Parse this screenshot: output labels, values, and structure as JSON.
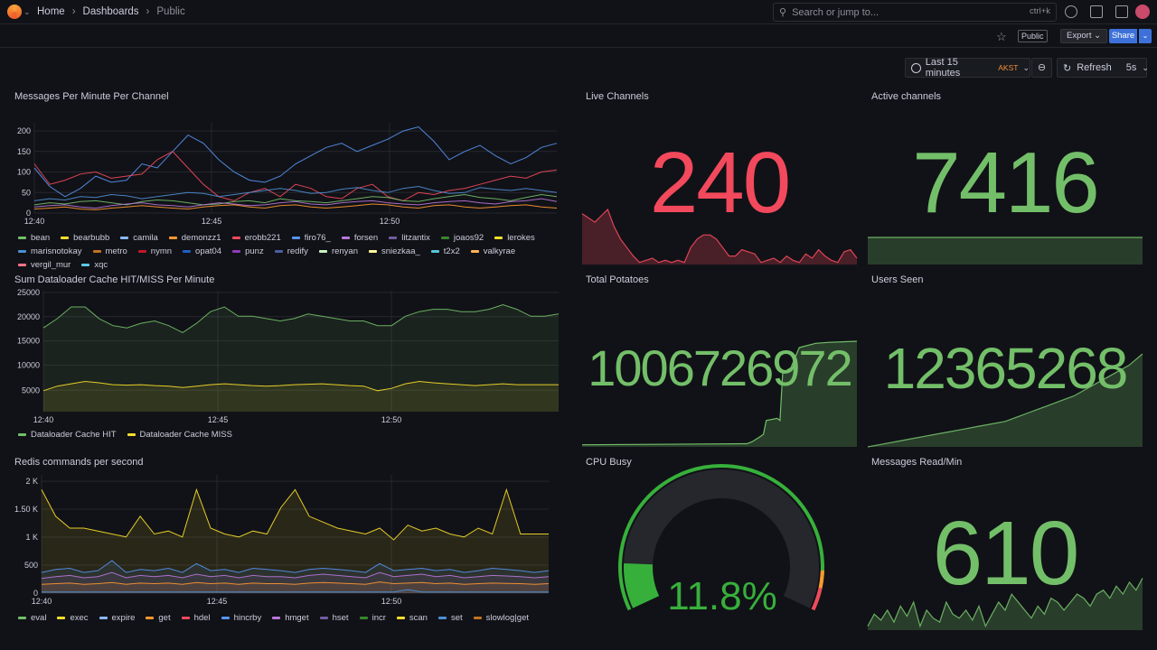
{
  "breadcrumb": {
    "home": "Home",
    "dashboards": "Dashboards",
    "current": "Public"
  },
  "search": {
    "placeholder": "Search or jump to...",
    "shortcut": "ctrl+k"
  },
  "toolbar": {
    "public_badge": "Public",
    "export_label": "Export",
    "share_label": "Share"
  },
  "time": {
    "range": "Last 15 minutes",
    "tz": "AKST",
    "refresh_label": "Refresh",
    "interval": "5s"
  },
  "panels": {
    "messages": {
      "title": "Messages Per Minute Per Channel",
      "legend": [
        {
          "name": "bean",
          "color": "#73bf69"
        },
        {
          "name": "bearbubb",
          "color": "#fade2a"
        },
        {
          "name": "camila",
          "color": "#8ab8ff"
        },
        {
          "name": "demonzz1",
          "color": "#ff9830"
        },
        {
          "name": "erobb221",
          "color": "#f2495c"
        },
        {
          "name": "firo76_",
          "color": "#5794f2"
        },
        {
          "name": "forsen",
          "color": "#b877d9"
        },
        {
          "name": "litzantix",
          "color": "#705da0"
        },
        {
          "name": "joaos92",
          "color": "#37872d"
        },
        {
          "name": "lerokes",
          "color": "#fade2a"
        },
        {
          "name": "marisnotokay",
          "color": "#4e8fd4"
        },
        {
          "name": "metro",
          "color": "#c4711f"
        },
        {
          "name": "nymn",
          "color": "#c4162a"
        },
        {
          "name": "opat04",
          "color": "#1f60c4"
        },
        {
          "name": "punz",
          "color": "#8f3bb8"
        },
        {
          "name": "redify",
          "color": "#4c5f9f"
        },
        {
          "name": "renyan",
          "color": "#c8f2c2"
        },
        {
          "name": "sniezkaa_",
          "color": "#fff899"
        },
        {
          "name": "t2x2",
          "color": "#56c7d8"
        },
        {
          "name": "valkyrae",
          "color": "#ffb357"
        },
        {
          "name": "vergil_mur",
          "color": "#ff7383"
        },
        {
          "name": "xqc",
          "color": "#5ac8e8"
        }
      ]
    },
    "live": {
      "title": "Live Channels",
      "value": "240",
      "color": "#f2495c"
    },
    "active": {
      "title": "Active channels",
      "value": "7416",
      "color": "#73bf69"
    },
    "dataloader": {
      "title": "Sum Dataloader Cache HIT/MISS Per Minute",
      "legend": [
        {
          "name": "Dataloader Cache HIT",
          "color": "#73bf69"
        },
        {
          "name": "Dataloader Cache MISS",
          "color": "#fade2a"
        }
      ]
    },
    "potatoes": {
      "title": "Total Potatoes",
      "value": "1006726972",
      "color": "#73bf69"
    },
    "users": {
      "title": "Users Seen",
      "value": "12365268",
      "color": "#73bf69"
    },
    "redis": {
      "title": "Redis commands per second",
      "legend": [
        {
          "name": "eval",
          "color": "#73bf69"
        },
        {
          "name": "exec",
          "color": "#fade2a"
        },
        {
          "name": "expire",
          "color": "#8ab8ff"
        },
        {
          "name": "get",
          "color": "#ff9830"
        },
        {
          "name": "hdel",
          "color": "#f2495c"
        },
        {
          "name": "hincrby",
          "color": "#5794f2"
        },
        {
          "name": "hmget",
          "color": "#b877d9"
        },
        {
          "name": "hset",
          "color": "#705da0"
        },
        {
          "name": "incr",
          "color": "#37872d"
        },
        {
          "name": "scan",
          "color": "#fade2a"
        },
        {
          "name": "set",
          "color": "#4e8fd4"
        },
        {
          "name": "slowlog|get",
          "color": "#c4711f"
        }
      ]
    },
    "cpu": {
      "title": "CPU Busy",
      "value": "11.8%",
      "percent": 11.8,
      "color": "#37b03b"
    },
    "read": {
      "title": "Messages Read/Min",
      "value": "610",
      "color": "#73bf69"
    }
  },
  "chart_data": [
    {
      "type": "line",
      "title": "Messages Per Minute Per Channel",
      "x_ticks": [
        "12:40",
        "12:45",
        "12:50"
      ],
      "y_ticks": [
        "0",
        "50",
        "100",
        "150",
        "200"
      ],
      "ylim": [
        0,
        220
      ],
      "series": [
        {
          "name": "firo76_",
          "values": [
            110,
            65,
            40,
            60,
            90,
            75,
            80,
            120,
            110,
            150,
            190,
            170,
            130,
            100,
            80,
            75,
            90,
            120,
            140,
            160,
            170,
            150,
            165,
            180,
            200,
            210,
            175,
            130,
            150,
            165,
            140,
            120,
            135,
            160,
            170
          ]
        },
        {
          "name": "erobb221",
          "values": [
            120,
            70,
            80,
            95,
            100,
            85,
            90,
            95,
            130,
            150,
            110,
            70,
            40,
            30,
            50,
            60,
            40,
            70,
            60,
            40,
            35,
            60,
            70,
            40,
            30,
            50,
            45,
            55,
            60,
            70,
            80,
            90,
            85,
            100,
            105
          ]
        },
        {
          "name": "marisnotokay",
          "values": [
            30,
            35,
            32,
            40,
            38,
            45,
            42,
            35,
            40,
            45,
            50,
            48,
            40,
            45,
            50,
            55,
            60,
            55,
            48,
            50,
            58,
            62,
            55,
            50,
            60,
            65,
            55,
            48,
            50,
            62,
            58,
            55,
            60,
            55,
            50
          ]
        },
        {
          "name": "bean",
          "values": [
            20,
            25,
            22,
            28,
            30,
            25,
            20,
            28,
            32,
            30,
            25,
            20,
            22,
            28,
            30,
            25,
            35,
            30,
            28,
            25,
            30,
            35,
            40,
            38,
            30,
            28,
            35,
            40,
            45,
            38,
            35,
            30,
            38,
            45,
            40
          ]
        },
        {
          "name": "forsen",
          "values": [
            15,
            18,
            20,
            15,
            12,
            18,
            22,
            25,
            20,
            18,
            15,
            20,
            25,
            22,
            18,
            20,
            25,
            28,
            22,
            20,
            25,
            28,
            30,
            25,
            22,
            20,
            25,
            28,
            30,
            25,
            22,
            28,
            30,
            35,
            28
          ]
        },
        {
          "name": "demonzz1",
          "values": [
            10,
            12,
            15,
            10,
            8,
            12,
            15,
            18,
            15,
            12,
            10,
            15,
            18,
            20,
            15,
            12,
            18,
            20,
            15,
            12,
            15,
            18,
            22,
            20,
            15,
            12,
            18,
            20,
            15,
            12,
            15,
            18,
            20,
            15,
            12
          ]
        }
      ]
    },
    {
      "type": "area",
      "title": "Live Channels",
      "values": [
        120,
        110,
        100,
        115,
        130,
        90,
        60,
        40,
        20,
        5,
        10,
        15,
        5,
        10,
        5,
        10,
        5,
        40,
        60,
        70,
        70,
        60,
        40,
        20,
        20,
        35,
        30,
        25,
        5,
        10,
        15,
        5,
        20,
        10,
        5,
        25,
        15,
        35,
        20,
        10,
        5,
        30,
        35,
        15
      ]
    },
    {
      "type": "area",
      "title": "Active channels",
      "values": [
        7416,
        7416,
        7416,
        7416,
        7416,
        7416,
        7416,
        7416
      ]
    },
    {
      "type": "area",
      "title": "Sum Dataloader Cache HIT/MISS Per Minute",
      "x_ticks": [
        "12:40",
        "12:45",
        "12:50"
      ],
      "y_ticks": [
        "5000",
        "10000",
        "15000",
        "20000",
        "25000"
      ],
      "ylim": [
        0,
        26000
      ],
      "series": [
        {
          "name": "Dataloader Cache HIT",
          "values": [
            18000,
            20000,
            22500,
            22500,
            20000,
            18500,
            18000,
            19000,
            19500,
            18500,
            17000,
            19000,
            21500,
            22500,
            20500,
            20500,
            20000,
            19500,
            20000,
            21000,
            20500,
            20000,
            19500,
            19500,
            18500,
            18500,
            20500,
            21500,
            22000,
            22000,
            21500,
            21500,
            22000,
            23000,
            22000,
            20500,
            20500,
            21000
          ]
        },
        {
          "name": "Dataloader Cache MISS",
          "values": [
            4500,
            5500,
            6000,
            6500,
            6200,
            5800,
            5700,
            5800,
            5600,
            5500,
            5200,
            5500,
            5800,
            6000,
            5800,
            5600,
            5500,
            5600,
            5800,
            5900,
            6000,
            5800,
            5600,
            5500,
            4500,
            5000,
            6000,
            6500,
            6200,
            6000,
            5800,
            5600,
            5800,
            6000,
            5800,
            5800,
            5800,
            5800
          ]
        }
      ]
    },
    {
      "type": "area",
      "title": "Total Potatoes",
      "values": [
        1000001000,
        1000001200,
        1000001300,
        1000001400,
        1000001500,
        1000001600,
        1000001700,
        1000001800,
        1000001900,
        1000002000,
        1000002100,
        1000002500,
        1000003000,
        1000004000,
        1000005000,
        1000006726972,
        1006726972,
        1006726972
      ]
    },
    {
      "type": "area",
      "title": "Users Seen",
      "values": [
        12000000,
        12010000,
        12020000,
        12030000,
        12040000,
        12050000,
        12060000,
        12070000,
        12080000,
        12090000,
        12100000,
        12120000,
        12140000,
        12160000,
        12180000,
        12200000,
        12230000,
        12260000,
        12290000,
        12320000,
        12365268
      ]
    },
    {
      "type": "area",
      "title": "Redis commands per second",
      "x_ticks": [
        "12:40",
        "12:45",
        "12:50"
      ],
      "y_ticks": [
        "0",
        "500",
        "1 K",
        "1.50 K",
        "2 K"
      ],
      "ylim": [
        0,
        2000
      ],
      "series": [
        {
          "name": "exec",
          "values": [
            1750,
            1300,
            1100,
            1100,
            1050,
            1000,
            950,
            1300,
            1000,
            1050,
            950,
            1750,
            1100,
            1000,
            950,
            1050,
            1000,
            1450,
            1750,
            1300,
            1200,
            1100,
            1050,
            1000,
            1100,
            900,
            1150,
            1050,
            1100,
            1000,
            950,
            1100,
            1000,
            1750,
            1000,
            1000,
            1000
          ]
        },
        {
          "name": "hincrby",
          "values": [
            350,
            400,
            420,
            350,
            380,
            550,
            350,
            400,
            380,
            420,
            350,
            500,
            380,
            400,
            350,
            420,
            400,
            380,
            350,
            400,
            420,
            400,
            380,
            350,
            500,
            380,
            400,
            420,
            380,
            400,
            350,
            380,
            420,
            400,
            380,
            350,
            380
          ]
        },
        {
          "name": "hmget",
          "values": [
            250,
            280,
            300,
            260,
            280,
            350,
            260,
            300,
            280,
            300,
            260,
            320,
            280,
            300,
            260,
            300,
            280,
            280,
            260,
            300,
            320,
            300,
            280,
            260,
            350,
            280,
            300,
            320,
            280,
            300,
            260,
            280,
            300,
            290,
            280,
            260,
            280
          ]
        },
        {
          "name": "get",
          "values": [
            150,
            160,
            170,
            150,
            160,
            180,
            150,
            170,
            160,
            170,
            150,
            180,
            160,
            170,
            150,
            170,
            160,
            160,
            150,
            170,
            180,
            170,
            160,
            150,
            190,
            160,
            170,
            180,
            160,
            170,
            150,
            160,
            170,
            165,
            160,
            150,
            160
          ]
        },
        {
          "name": "set",
          "values": [
            20,
            20,
            20,
            20,
            20,
            20,
            20,
            20,
            20,
            20,
            20,
            20,
            20,
            20,
            20,
            20,
            20,
            20,
            20,
            20,
            20,
            20,
            20,
            20,
            20,
            20,
            60,
            20,
            20,
            20,
            20,
            20,
            20,
            20,
            20,
            20,
            20
          ]
        }
      ]
    },
    {
      "type": "area",
      "title": "Messages Read/Min",
      "values": [
        560,
        590,
        575,
        600,
        570,
        610,
        585,
        620,
        560,
        600,
        580,
        570,
        620,
        590,
        580,
        600,
        575,
        610,
        560,
        590,
        620,
        600,
        640,
        620,
        600,
        580,
        610,
        590,
        630,
        620,
        600,
        620,
        640,
        630,
        610,
        640,
        650,
        630,
        660,
        640,
        670,
        650,
        680
      ]
    }
  ]
}
